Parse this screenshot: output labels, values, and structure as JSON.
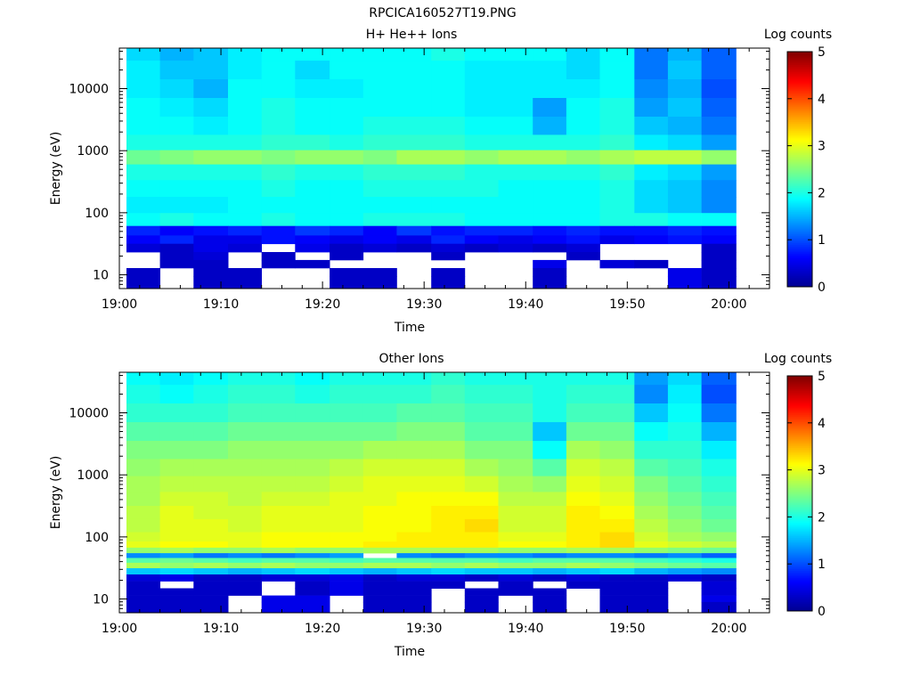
{
  "figure": {
    "title": "RPCICA160527T19.PNG"
  },
  "colormap": [
    "#00008f",
    "#0000ff",
    "#0080ff",
    "#00ffff",
    "#80ff80",
    "#ffff00",
    "#ff8000",
    "#ff0000",
    "#800000"
  ],
  "chart_data": [
    {
      "type": "heatmap",
      "title": "H+ He++ Ions",
      "xlabel": "Time",
      "ylabel": "Energy (eV)",
      "xticks": [
        "19:00",
        "19:10",
        "19:20",
        "19:30",
        "19:40",
        "19:50",
        "20:00"
      ],
      "xlim_minutes": [
        0,
        64
      ],
      "ylim": [
        6,
        45000
      ],
      "yscale": "log",
      "yticks": [
        "10",
        "100",
        "1000",
        "10000"
      ],
      "colorbar": {
        "label": "Log counts",
        "ticks": [
          "0",
          "1",
          "2",
          "3",
          "4",
          "5"
        ],
        "range": [
          0,
          5
        ]
      },
      "time_edges_minutes": [
        0.7,
        4,
        7.3,
        10.7,
        14,
        17.3,
        20.7,
        24,
        27.3,
        30.7,
        34,
        37.3,
        40.7,
        44,
        47.3,
        50.7,
        54,
        57.3,
        60.7
      ],
      "energy_levels": [
        {
          "e": 40000,
          "lc": [
            1.7,
            1.5,
            1.6,
            1.8,
            1.9,
            1.9,
            1.9,
            1.9,
            1.9,
            2.0,
            1.9,
            1.9,
            1.9,
            1.7,
            1.9,
            1.2,
            1.5,
            1.1
          ]
        },
        {
          "e": 20000,
          "lc": [
            1.8,
            1.6,
            1.6,
            1.8,
            1.9,
            1.7,
            1.9,
            1.9,
            1.9,
            1.9,
            1.8,
            1.8,
            1.8,
            1.7,
            1.9,
            1.2,
            1.6,
            1.1
          ]
        },
        {
          "e": 10000,
          "lc": [
            1.8,
            1.7,
            1.5,
            1.9,
            1.9,
            1.8,
            1.8,
            1.9,
            1.9,
            1.9,
            1.8,
            1.8,
            1.8,
            1.8,
            1.9,
            1.3,
            1.5,
            1.0
          ]
        },
        {
          "e": 5000,
          "lc": [
            1.9,
            1.8,
            1.7,
            1.9,
            2.0,
            1.9,
            1.9,
            1.9,
            1.9,
            1.9,
            1.8,
            1.8,
            1.4,
            1.9,
            2.0,
            1.4,
            1.6,
            1.1
          ]
        },
        {
          "e": 2500,
          "lc": [
            1.9,
            1.9,
            1.8,
            1.9,
            2.0,
            1.9,
            1.9,
            2.0,
            2.0,
            2.0,
            1.9,
            1.9,
            1.5,
            1.9,
            2.0,
            1.6,
            1.5,
            1.2
          ]
        },
        {
          "e": 1300,
          "lc": [
            2.0,
            2.0,
            2.0,
            2.0,
            2.1,
            2.1,
            2.0,
            2.1,
            2.1,
            2.1,
            2.0,
            2.0,
            2.0,
            2.0,
            2.1,
            1.8,
            1.7,
            1.4
          ]
        },
        {
          "e": 800,
          "lc": [
            2.4,
            2.5,
            2.6,
            2.6,
            2.5,
            2.6,
            2.6,
            2.5,
            2.7,
            2.7,
            2.6,
            2.7,
            2.7,
            2.6,
            2.7,
            2.8,
            2.8,
            2.6
          ]
        },
        {
          "e": 450,
          "lc": [
            2.0,
            2.0,
            2.0,
            2.0,
            2.1,
            2.0,
            2.0,
            2.1,
            2.1,
            2.1,
            2.0,
            2.0,
            2.0,
            2.0,
            2.1,
            1.8,
            1.7,
            1.4
          ]
        },
        {
          "e": 250,
          "lc": [
            1.9,
            1.9,
            1.9,
            1.9,
            2.0,
            1.9,
            1.9,
            2.0,
            2.0,
            2.0,
            2.0,
            1.9,
            1.9,
            1.9,
            2.0,
            1.7,
            1.6,
            1.3
          ]
        },
        {
          "e": 130,
          "lc": [
            1.8,
            1.8,
            1.8,
            1.9,
            1.9,
            1.9,
            1.9,
            1.9,
            1.9,
            1.9,
            1.9,
            1.9,
            1.9,
            1.9,
            2.0,
            1.7,
            1.6,
            1.3
          ]
        },
        {
          "e": 75,
          "lc": [
            1.9,
            2.0,
            1.9,
            1.9,
            2.0,
            1.9,
            1.9,
            2.0,
            2.0,
            2.0,
            1.9,
            1.9,
            1.9,
            1.9,
            2.0,
            2.0,
            1.9,
            1.9
          ]
        },
        {
          "e": 50,
          "lc": [
            0.8,
            0.6,
            0.7,
            0.8,
            0.7,
            0.9,
            0.8,
            0.6,
            0.9,
            0.7,
            0.8,
            0.8,
            0.7,
            0.8,
            0.7,
            0.7,
            0.8,
            0.7
          ]
        },
        {
          "e": 37,
          "lc": [
            0.6,
            0.8,
            0.5,
            0.5,
            0.7,
            0.6,
            0.5,
            0.6,
            0.5,
            0.8,
            0.6,
            0.5,
            0.6,
            0.7,
            0.5,
            0.6,
            0.7,
            0.6
          ]
        },
        {
          "e": 27,
          "lc": [
            0.4,
            0.3,
            0.5,
            0.4,
            null,
            0.5,
            0.3,
            0.4,
            0.3,
            0.4,
            0.3,
            0.4,
            0.3,
            0.4,
            null,
            null,
            null,
            0.3
          ]
        },
        {
          "e": 20,
          "lc": [
            null,
            0.3,
            0.4,
            null,
            0.3,
            null,
            0.3,
            null,
            null,
            0.3,
            null,
            null,
            null,
            0.3,
            null,
            null,
            null,
            0.3
          ]
        },
        {
          "e": 15,
          "lc": [
            null,
            0.3,
            0.3,
            null,
            0.3,
            0.3,
            null,
            null,
            null,
            null,
            null,
            null,
            0.5,
            null,
            0.4,
            0.3,
            null,
            0.3
          ]
        },
        {
          "e": 11,
          "lc": [
            0.3,
            null,
            0.3,
            0.3,
            null,
            null,
            0.3,
            0.3,
            null,
            0.3,
            null,
            null,
            0.3,
            null,
            null,
            null,
            0.5,
            0.3
          ]
        },
        {
          "e": 8,
          "lc": [
            0.3,
            null,
            0.3,
            0.3,
            null,
            null,
            0.3,
            0.3,
            null,
            0.3,
            null,
            null,
            0.3,
            null,
            null,
            null,
            0.5,
            0.3
          ]
        }
      ]
    },
    {
      "type": "heatmap",
      "title": "Other Ions",
      "xlabel": "Time",
      "ylabel": "Energy (eV)",
      "xticks": [
        "19:00",
        "19:10",
        "19:20",
        "19:30",
        "19:40",
        "19:50",
        "20:00"
      ],
      "xlim_minutes": [
        0,
        64
      ],
      "ylim": [
        6,
        45000
      ],
      "yscale": "log",
      "yticks": [
        "10",
        "100",
        "1000",
        "10000"
      ],
      "colorbar": {
        "label": "Log counts",
        "ticks": [
          "0",
          "1",
          "2",
          "3",
          "4",
          "5"
        ],
        "range": [
          0,
          5
        ]
      },
      "time_edges_minutes": [
        0.7,
        4,
        7.3,
        10.7,
        14,
        17.3,
        20.7,
        24,
        27.3,
        30.7,
        34,
        37.3,
        40.7,
        44,
        47.3,
        50.7,
        54,
        57.3,
        60.7
      ],
      "energy_levels": [
        {
          "e": 40000,
          "lc": [
            1.9,
            1.8,
            1.9,
            2.0,
            2.0,
            1.9,
            2.0,
            2.0,
            2.0,
            2.1,
            2.0,
            2.0,
            2.0,
            2.0,
            2.0,
            1.4,
            1.7,
            1.1
          ]
        },
        {
          "e": 20000,
          "lc": [
            2.0,
            1.9,
            2.0,
            2.1,
            2.1,
            2.0,
            2.1,
            2.1,
            2.1,
            2.2,
            2.1,
            2.1,
            2.0,
            2.1,
            2.1,
            1.3,
            1.8,
            1.0
          ]
        },
        {
          "e": 10000,
          "lc": [
            2.1,
            2.1,
            2.1,
            2.2,
            2.2,
            2.2,
            2.2,
            2.2,
            2.3,
            2.3,
            2.2,
            2.2,
            2.0,
            2.2,
            2.2,
            1.6,
            1.9,
            1.2
          ]
        },
        {
          "e": 5000,
          "lc": [
            2.3,
            2.3,
            2.3,
            2.4,
            2.4,
            2.4,
            2.4,
            2.4,
            2.5,
            2.5,
            2.3,
            2.3,
            1.6,
            2.4,
            2.4,
            1.9,
            2.0,
            1.5
          ]
        },
        {
          "e": 2500,
          "lc": [
            2.5,
            2.5,
            2.5,
            2.6,
            2.6,
            2.6,
            2.6,
            2.7,
            2.7,
            2.7,
            2.5,
            2.5,
            1.9,
            2.7,
            2.6,
            2.1,
            2.1,
            1.8
          ]
        },
        {
          "e": 1300,
          "lc": [
            2.6,
            2.7,
            2.7,
            2.7,
            2.7,
            2.7,
            2.8,
            2.9,
            2.9,
            2.9,
            2.7,
            2.6,
            2.3,
            2.9,
            2.8,
            2.3,
            2.2,
            2.0
          ]
        },
        {
          "e": 700,
          "lc": [
            2.7,
            2.8,
            2.8,
            2.8,
            2.8,
            2.8,
            2.9,
            3.0,
            3.0,
            3.0,
            2.9,
            2.7,
            2.6,
            3.0,
            2.9,
            2.5,
            2.3,
            2.1
          ]
        },
        {
          "e": 400,
          "lc": [
            2.7,
            2.9,
            2.9,
            2.8,
            2.9,
            2.9,
            3.0,
            3.0,
            3.1,
            3.1,
            3.1,
            2.8,
            2.8,
            3.1,
            3.0,
            2.6,
            2.4,
            2.2
          ]
        },
        {
          "e": 250,
          "lc": [
            2.8,
            3.0,
            2.9,
            2.9,
            3.0,
            3.0,
            3.0,
            3.1,
            3.1,
            3.2,
            3.2,
            2.9,
            2.9,
            3.2,
            3.1,
            2.7,
            2.5,
            2.3
          ]
        },
        {
          "e": 150,
          "lc": [
            2.8,
            3.0,
            3.0,
            2.9,
            3.0,
            3.0,
            3.0,
            3.1,
            3.1,
            3.2,
            3.3,
            2.9,
            2.9,
            3.2,
            3.2,
            2.8,
            2.6,
            2.4
          ]
        },
        {
          "e": 95,
          "lc": [
            2.9,
            3.0,
            3.0,
            3.0,
            3.1,
            3.1,
            3.1,
            3.1,
            3.2,
            3.2,
            3.2,
            3.0,
            3.0,
            3.2,
            3.3,
            2.9,
            2.7,
            2.6
          ]
        },
        {
          "e": 75,
          "lc": [
            3.0,
            3.1,
            3.1,
            3.0,
            3.1,
            3.1,
            3.1,
            3.2,
            3.2,
            3.2,
            3.2,
            3.1,
            3.1,
            3.2,
            3.3,
            3.0,
            2.9,
            2.8
          ]
        },
        {
          "e": 60,
          "lc": [
            2.6,
            2.7,
            2.6,
            2.6,
            2.7,
            2.6,
            2.6,
            2.7,
            2.7,
            2.7,
            2.7,
            2.6,
            2.6,
            2.7,
            2.7,
            2.6,
            2.5,
            2.4
          ]
        },
        {
          "e": 50,
          "lc": [
            1.3,
            1.4,
            1.2,
            1.3,
            1.2,
            1.3,
            1.4,
            null,
            1.3,
            1.2,
            1.3,
            1.3,
            1.2,
            1.3,
            1.3,
            1.2,
            1.3,
            1.1
          ]
        },
        {
          "e": 42,
          "lc": [
            2.3,
            2.4,
            2.3,
            2.2,
            2.3,
            2.3,
            2.2,
            2.3,
            2.3,
            2.3,
            2.3,
            2.2,
            2.3,
            2.3,
            2.3,
            2.2,
            2.1,
            2.0
          ]
        },
        {
          "e": 35,
          "lc": [
            2.7,
            2.6,
            2.7,
            2.6,
            2.7,
            2.6,
            2.6,
            2.7,
            2.7,
            2.6,
            2.7,
            2.6,
            2.6,
            2.7,
            2.6,
            2.5,
            2.4,
            2.3
          ]
        },
        {
          "e": 28,
          "lc": [
            1.6,
            1.7,
            1.6,
            1.5,
            1.6,
            1.7,
            1.6,
            1.5,
            1.6,
            1.7,
            1.6,
            1.6,
            1.5,
            1.6,
            1.7,
            1.5,
            1.4,
            1.3
          ]
        },
        {
          "e": 22,
          "lc": [
            0.4,
            0.5,
            0.3,
            0.3,
            0.4,
            0.4,
            0.5,
            0.3,
            0.4,
            0.4,
            0.3,
            0.4,
            0.3,
            0.4,
            0.3,
            0.3,
            0.4,
            0.3
          ]
        },
        {
          "e": 17,
          "lc": [
            0.3,
            null,
            0.3,
            0.3,
            null,
            0.3,
            0.5,
            0.3,
            0.3,
            0.3,
            null,
            0.3,
            null,
            0.3,
            0.3,
            0.3,
            null,
            0.4
          ]
        },
        {
          "e": 13,
          "lc": [
            0.3,
            0.3,
            0.3,
            0.3,
            null,
            0.3,
            0.5,
            0.3,
            0.3,
            null,
            0.3,
            0.3,
            0.3,
            null,
            0.3,
            0.3,
            null,
            0.4
          ]
        },
        {
          "e": 10,
          "lc": [
            0.3,
            0.3,
            0.3,
            null,
            0.5,
            0.5,
            null,
            0.3,
            0.3,
            null,
            0.3,
            null,
            0.3,
            null,
            0.3,
            0.3,
            null,
            0.5
          ]
        },
        {
          "e": 8,
          "lc": [
            0.3,
            0.3,
            0.3,
            null,
            0.5,
            0.5,
            null,
            0.3,
            0.3,
            null,
            0.3,
            null,
            0.3,
            null,
            0.3,
            0.3,
            null,
            0.3
          ]
        }
      ]
    }
  ]
}
